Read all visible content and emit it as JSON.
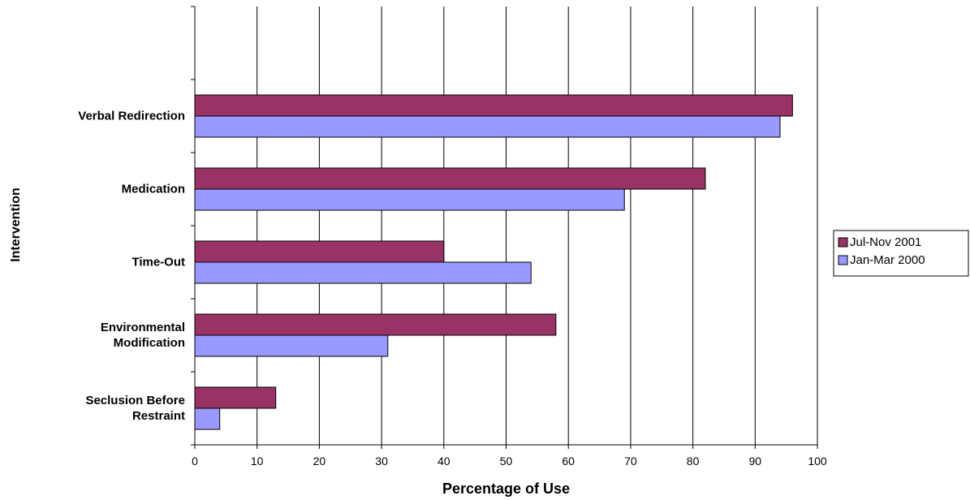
{
  "chart_data": {
    "type": "hbar",
    "x_label": "Percentage of Use",
    "y_label": "Intervention",
    "categories": [
      null,
      "Verbal Redirection",
      "Medication",
      "Time-Out",
      "Environmental Modification",
      "Seclusion Before Restraint"
    ],
    "series": [
      {
        "name": "Jul-Nov 2001",
        "color": "#993366",
        "values": [
          null,
          96,
          82,
          40,
          58,
          13
        ]
      },
      {
        "name": "Jan-Mar 2000",
        "color": "#9999ff",
        "values": [
          null,
          94,
          69,
          54,
          31,
          4
        ]
      }
    ],
    "xlim": [
      0,
      100
    ],
    "xticks": [
      0,
      10,
      20,
      30,
      40,
      50,
      60,
      70,
      80,
      90,
      100
    ],
    "grid": true,
    "legend": "right"
  }
}
